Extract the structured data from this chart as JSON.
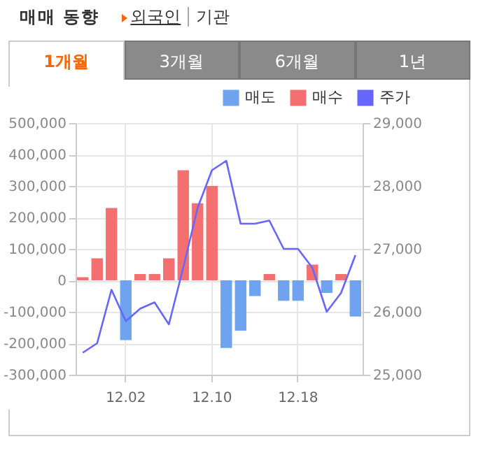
{
  "chart_data": {
    "type": "bar",
    "title": "매매 동향",
    "annotations": [
      "외국인",
      "기관",
      "1개월",
      "3개월",
      "6개월",
      "1년"
    ],
    "categories": [
      null,
      null,
      null,
      "12.02",
      null,
      null,
      null,
      null,
      null,
      "12.10",
      null,
      null,
      null,
      null,
      null,
      "12.18",
      null,
      null,
      null,
      null
    ],
    "series": [
      {
        "name": "매도",
        "color": "#6fa3ef",
        "values": [
          null,
          null,
          null,
          -190000,
          null,
          null,
          null,
          null,
          null,
          null,
          -215000,
          -160000,
          -50000,
          null,
          -65000,
          -65000,
          null,
          -40000,
          null,
          -115000
        ]
      },
      {
        "name": "매수",
        "color": "#f47070",
        "values": [
          10000,
          70000,
          230000,
          0,
          20000,
          20000,
          70000,
          350000,
          245000,
          300000,
          0,
          0,
          0,
          20000,
          0,
          0,
          50000,
          0,
          20000,
          0
        ]
      },
      {
        "name": "주가",
        "type": "line",
        "axis": "y2",
        "color": "#6666ff",
        "values": [
          25350,
          25500,
          26350,
          25850,
          26050,
          26150,
          25800,
          26700,
          27650,
          28250,
          28400,
          27400,
          27400,
          27450,
          27000,
          27000,
          26700,
          26000,
          26300,
          26900
        ]
      }
    ],
    "ylim": [
      -300000,
      500000
    ],
    "yticks": [
      {
        "value": -300000,
        "label": "-300,000"
      },
      {
        "value": -200000,
        "label": "-200,000"
      },
      {
        "value": -100000,
        "label": "-100,000"
      },
      0,
      {
        "value": 100000,
        "label": "100,000"
      },
      {
        "value": 200000,
        "label": "200,000"
      },
      {
        "value": 300000,
        "label": "300,000"
      },
      {
        "value": 400000,
        "label": "400,000"
      },
      {
        "value": 500000,
        "label": "500,000"
      }
    ],
    "y2lim": [
      25000,
      29000
    ],
    "y2ticks": [
      {
        "value": 25000,
        "label": "25,000"
      },
      {
        "value": 26000,
        "label": "26,000"
      },
      {
        "value": 27000,
        "label": "27,000"
      },
      {
        "value": 28000,
        "label": "28,000"
      },
      {
        "value": 29000,
        "label": "29,000"
      }
    ],
    "grid": true,
    "legend": "top right"
  }
}
